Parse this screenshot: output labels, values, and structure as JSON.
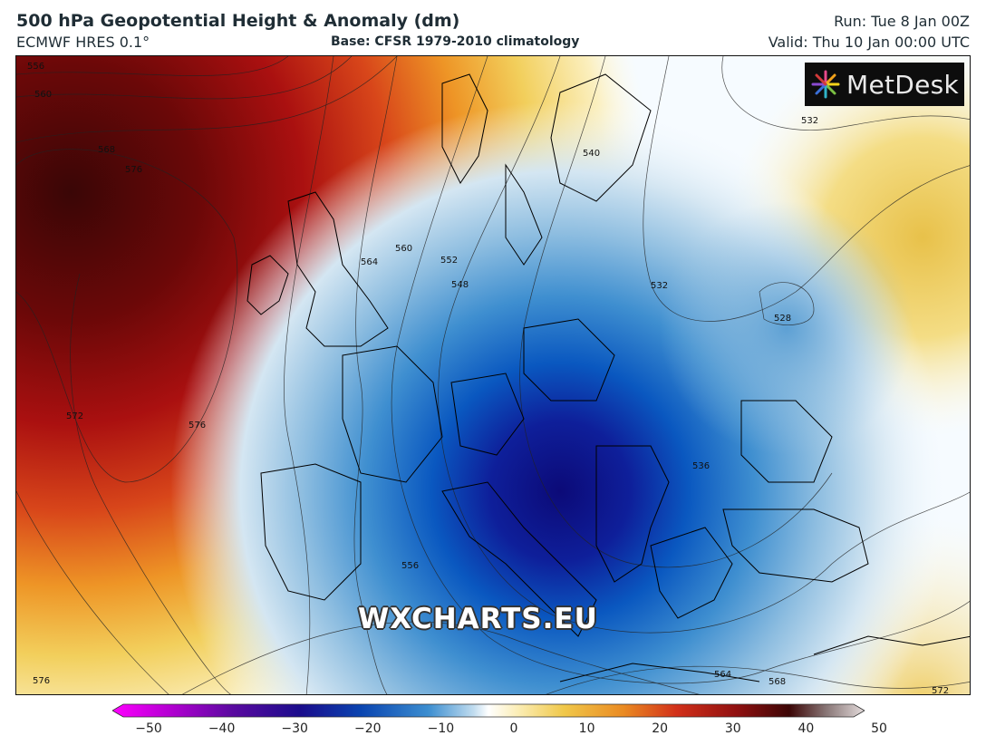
{
  "header": {
    "title": "500 hPa Geopotential Height & Anomaly (dm)",
    "model": "ECMWF HRES 0.1°",
    "base": "Base: CFSR 1979-2010 climatology",
    "run": "Run: Tue 8 Jan 00Z",
    "valid": "Valid: Thu 10 Jan 00:00 UTC"
  },
  "logo": {
    "text": "MetDesk",
    "icon": "pinwheel-icon"
  },
  "watermark": "WXCHARTS.EU",
  "contour_labels": [
    "556",
    "560",
    "568",
    "576",
    "572",
    "576",
    "564",
    "560",
    "552",
    "548",
    "540",
    "532",
    "532",
    "528",
    "536",
    "556",
    "564",
    "568",
    "572",
    "576"
  ],
  "colorbar": {
    "min": -50,
    "max": 50,
    "ticks": [
      "−50",
      "−40",
      "−30",
      "−20",
      "−10",
      "0",
      "10",
      "20",
      "30",
      "40",
      "50"
    ],
    "tick_values": [
      -50,
      -40,
      -30,
      -20,
      -10,
      0,
      10,
      20,
      30,
      40,
      50
    ],
    "colors": {
      "neg50": "#ff00ff",
      "neg40": "#8a00b0",
      "neg30": "#1a0c8c",
      "neg20": "#0a5cc6",
      "neg10": "#8fbfe0",
      "zero": "#ffffff",
      "pos10": "#f0c84a",
      "pos20": "#e0631a",
      "pos30": "#b41010",
      "pos40": "#3c0606",
      "pos50": "#d8d0d0"
    }
  }
}
